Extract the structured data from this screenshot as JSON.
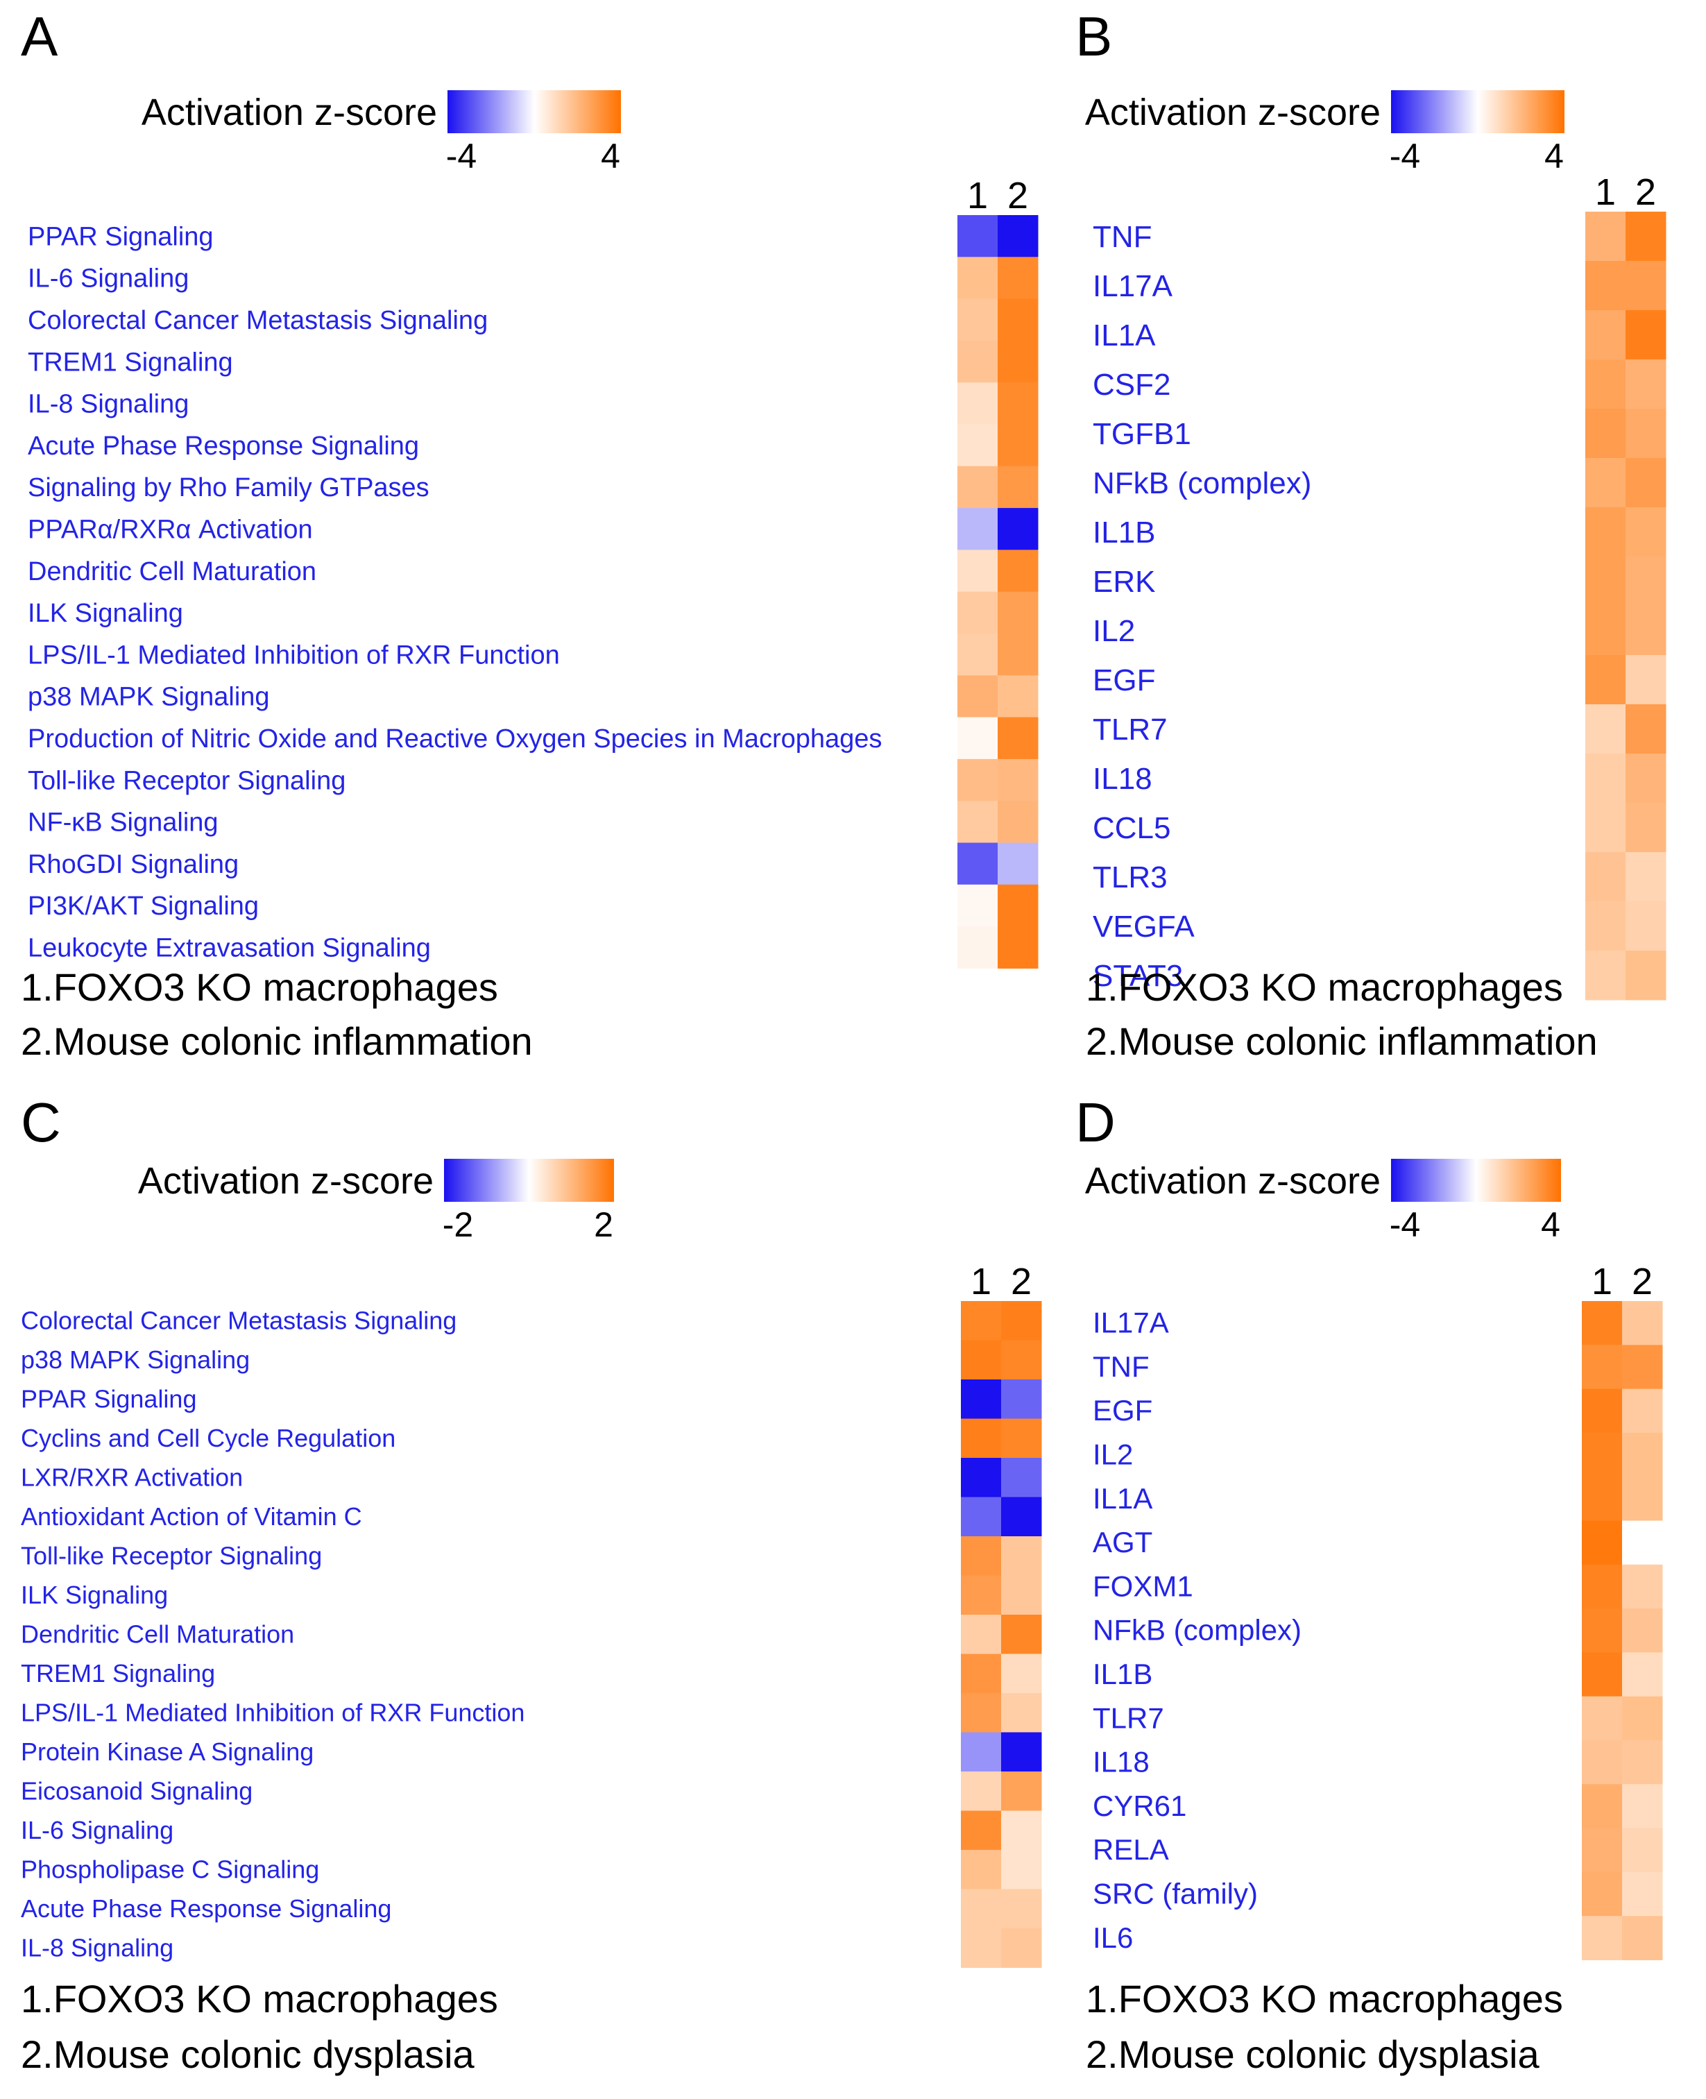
{
  "colors": {
    "negative": "#1a10f0",
    "neutral": "#ffffff",
    "positive": "#ff7200",
    "label": "#2323e6",
    "text": "#000000"
  },
  "chart_data": [
    {
      "panel_label": "A",
      "type": "heatmap",
      "legend": {
        "title": "Activation z-score",
        "min_label": "-4",
        "max_label": "4",
        "range": [
          -4,
          4
        ]
      },
      "columns": [
        "1",
        "2"
      ],
      "rows": [
        "PPAR Signaling",
        "IL-6 Signaling",
        "Colorectal Cancer Metastasis Signaling",
        "TREM1 Signaling",
        "IL-8 Signaling",
        "Acute Phase Response Signaling",
        "Signaling by Rho Family GTPases",
        "PPARα/RXRα Activation",
        "Dendritic Cell Maturation",
        "ILK Signaling",
        "LPS/IL-1 Mediated Inhibition of RXR Function",
        "p38 MAPK Signaling",
        "Production of Nitric Oxide and Reactive Oxygen Species in Macrophages",
        "Toll-like Receptor Signaling",
        "NF-κB Signaling",
        "RhoGDI Signaling",
        "PI3K/AKT Signaling",
        "Leukocyte Extravasation Signaling"
      ],
      "values": [
        [
          -3.0,
          -4.0
        ],
        [
          1.8,
          3.3
        ],
        [
          1.6,
          3.5
        ],
        [
          1.7,
          3.5
        ],
        [
          0.9,
          3.3
        ],
        [
          0.8,
          3.3
        ],
        [
          1.9,
          2.9
        ],
        [
          -1.2,
          -4.0
        ],
        [
          0.9,
          3.3
        ],
        [
          1.5,
          2.7
        ],
        [
          1.4,
          2.7
        ],
        [
          2.2,
          1.8
        ],
        [
          0.2,
          3.4
        ],
        [
          1.9,
          2.0
        ],
        [
          1.5,
          2.1
        ],
        [
          -2.8,
          -1.2
        ],
        [
          0.2,
          3.6
        ],
        [
          0.3,
          3.6
        ]
      ],
      "caption_lines": [
        "1.FOXO3 KO macrophages",
        "2.Mouse colonic inflammation"
      ]
    },
    {
      "panel_label": "B",
      "type": "heatmap",
      "legend": {
        "title": "Activation z-score",
        "min_label": "-4",
        "max_label": "4",
        "range": [
          -4,
          4
        ]
      },
      "columns": [
        "1",
        "2"
      ],
      "rows": [
        "TNF",
        "IL17A",
        "IL1A",
        "CSF2",
        "TGFB1",
        "NFkB (complex)",
        "IL1B",
        "ERK",
        "IL2",
        "EGF",
        "TLR7",
        "IL18",
        "CCL5",
        "TLR3",
        "VEGFA",
        "STAT3"
      ],
      "values": [
        [
          2.2,
          3.5
        ],
        [
          2.8,
          2.8
        ],
        [
          2.4,
          3.6
        ],
        [
          2.6,
          2.2
        ],
        [
          2.8,
          2.4
        ],
        [
          2.3,
          2.8
        ],
        [
          2.7,
          2.3
        ],
        [
          2.7,
          2.2
        ],
        [
          2.7,
          2.2
        ],
        [
          2.9,
          1.3
        ],
        [
          1.2,
          2.8
        ],
        [
          1.4,
          2.1
        ],
        [
          1.4,
          2.0
        ],
        [
          1.7,
          1.2
        ],
        [
          1.6,
          1.3
        ],
        [
          1.4,
          1.8
        ]
      ],
      "caption_lines": [
        "1.FOXO3 KO macrophages",
        "2.Mouse colonic inflammation"
      ]
    },
    {
      "panel_label": "C",
      "type": "heatmap",
      "legend": {
        "title": "Activation z-score",
        "min_label": "-2",
        "max_label": "2",
        "range": [
          -2,
          2
        ]
      },
      "columns": [
        "1",
        "2"
      ],
      "rows": [
        "Colorectal Cancer Metastasis Signaling",
        "p38 MAPK Signaling",
        "PPAR Signaling",
        "Cyclins and Cell Cycle Regulation",
        "LXR/RXR Activation",
        "Antioxidant Action of Vitamin C",
        "Toll-like Receptor Signaling",
        "ILK Signaling",
        "Dendritic Cell Maturation",
        "TREM1 Signaling",
        "LPS/IL-1 Mediated Inhibition of RXR Function",
        "Protein Kinase A Signaling",
        "Eicosanoid Signaling",
        "IL-6 Signaling",
        "Phospholipase C Signaling",
        "Acute Phase Response Signaling",
        "IL-8 Signaling"
      ],
      "values": [
        [
          1.7,
          1.8
        ],
        [
          1.8,
          1.7
        ],
        [
          -2.0,
          -1.3
        ],
        [
          1.8,
          1.7
        ],
        [
          -2.0,
          -1.3
        ],
        [
          -1.3,
          -2.0
        ],
        [
          1.5,
          0.8
        ],
        [
          1.4,
          0.8
        ],
        [
          0.7,
          1.7
        ],
        [
          1.5,
          0.5
        ],
        [
          1.4,
          0.7
        ],
        [
          -0.9,
          -2.0
        ],
        [
          0.6,
          1.3
        ],
        [
          1.6,
          0.4
        ],
        [
          0.9,
          0.4
        ],
        [
          0.7,
          0.7
        ],
        [
          0.7,
          0.8
        ]
      ],
      "caption_lines": [
        "1.FOXO3 KO macrophages",
        "2.Mouse colonic dysplasia"
      ]
    },
    {
      "panel_label": "D",
      "type": "heatmap",
      "legend": {
        "title": "Activation z-score",
        "min_label": "-4",
        "max_label": "4",
        "range": [
          -4,
          4
        ]
      },
      "columns": [
        "1",
        "2"
      ],
      "rows": [
        "IL17A",
        "TNF",
        "EGF",
        "IL2",
        "IL1A",
        "AGT",
        "FOXM1",
        "NFkB (complex)",
        "IL1B",
        "TLR7",
        "IL18",
        "CYR61",
        "RELA",
        "SRC (family)",
        "IL6"
      ],
      "values": [
        [
          3.5,
          1.6
        ],
        [
          3.1,
          3.0
        ],
        [
          3.6,
          1.5
        ],
        [
          3.5,
          1.8
        ],
        [
          3.5,
          1.8
        ],
        [
          3.8,
          0
        ],
        [
          3.5,
          1.4
        ],
        [
          3.4,
          1.7
        ],
        [
          3.6,
          1.0
        ],
        [
          1.6,
          1.8
        ],
        [
          1.7,
          1.6
        ],
        [
          2.3,
          1.0
        ],
        [
          2.2,
          1.2
        ],
        [
          2.3,
          1.0
        ],
        [
          1.4,
          1.7
        ]
      ],
      "caption_lines": [
        "1.FOXO3 KO macrophages",
        "2.Mouse colonic dysplasia"
      ]
    }
  ]
}
